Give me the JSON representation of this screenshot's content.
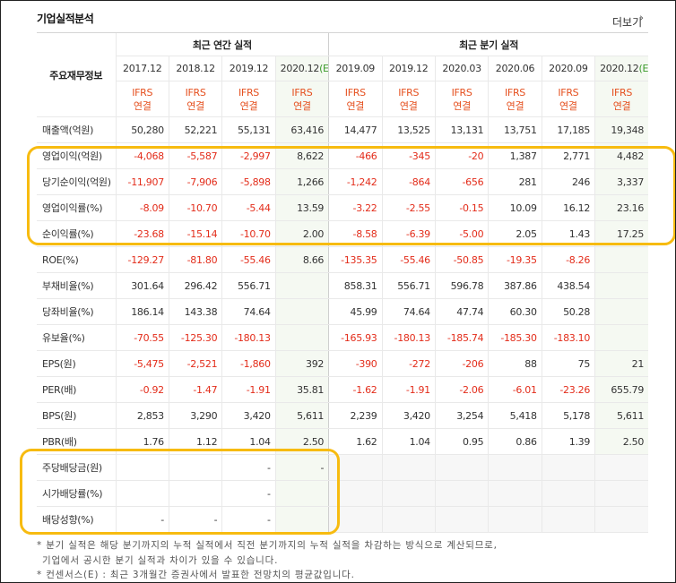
{
  "header": {
    "title": "기업실적분석",
    "more": "더보기"
  },
  "table": {
    "row_header": "주요재무정보",
    "groups": [
      {
        "label": "최근 연간 실적",
        "columns": [
          {
            "period": "2017.12",
            "standard": "IFRS",
            "basis": "연결"
          },
          {
            "period": "2018.12",
            "standard": "IFRS",
            "basis": "연결"
          },
          {
            "period": "2019.12",
            "standard": "IFRS",
            "basis": "연결"
          },
          {
            "period": "2020.12",
            "suffix": "(E)",
            "standard": "IFRS",
            "basis": "연결"
          }
        ]
      },
      {
        "label": "최근 분기 실적",
        "columns": [
          {
            "period": "2019.09",
            "standard": "IFRS",
            "basis": "연결"
          },
          {
            "period": "2019.12",
            "standard": "IFRS",
            "basis": "연결"
          },
          {
            "period": "2020.03",
            "standard": "IFRS",
            "basis": "연결"
          },
          {
            "period": "2020.06",
            "standard": "IFRS",
            "basis": "연결"
          },
          {
            "period": "2020.09",
            "standard": "IFRS",
            "basis": "연결"
          },
          {
            "period": "2020.12",
            "suffix": "(E)",
            "standard": "IFRS",
            "basis": "연결"
          }
        ]
      }
    ],
    "rows": [
      {
        "label": "매출액(억원)",
        "values": [
          "50,280",
          "52,221",
          "55,131",
          "63,416",
          "14,477",
          "13,525",
          "13,131",
          "13,751",
          "17,185",
          "19,348"
        ]
      },
      {
        "label": "영업이익(억원)",
        "values": [
          "-4,068",
          "-5,587",
          "-2,997",
          "8,622",
          "-466",
          "-345",
          "-20",
          "1,387",
          "2,771",
          "4,482"
        ]
      },
      {
        "label": "당기순이익(억원)",
        "values": [
          "-11,907",
          "-7,906",
          "-5,898",
          "1,266",
          "-1,242",
          "-864",
          "-656",
          "281",
          "246",
          "3,337"
        ]
      },
      {
        "label": "영업이익률(%)",
        "values": [
          "-8.09",
          "-10.70",
          "-5.44",
          "13.59",
          "-3.22",
          "-2.55",
          "-0.15",
          "10.09",
          "16.12",
          "23.16"
        ]
      },
      {
        "label": "순이익률(%)",
        "values": [
          "-23.68",
          "-15.14",
          "-10.70",
          "2.00",
          "-8.58",
          "-6.39",
          "-5.00",
          "2.05",
          "1.43",
          "17.25"
        ]
      },
      {
        "label": "ROE(%)",
        "values": [
          "-129.27",
          "-81.80",
          "-55.46",
          "8.66",
          "-135.35",
          "-55.46",
          "-50.85",
          "-19.35",
          "-8.26",
          null
        ]
      },
      {
        "label": "부채비율(%)",
        "values": [
          "301.64",
          "296.42",
          "556.71",
          null,
          "858.31",
          "556.71",
          "596.78",
          "387.86",
          "438.54",
          null
        ]
      },
      {
        "label": "당좌비율(%)",
        "values": [
          "186.14",
          "143.38",
          "74.64",
          null,
          "45.99",
          "74.64",
          "47.74",
          "60.30",
          "50.28",
          null
        ]
      },
      {
        "label": "유보율(%)",
        "values": [
          "-70.55",
          "-125.30",
          "-180.13",
          null,
          "-165.93",
          "-180.13",
          "-185.74",
          "-185.30",
          "-183.10",
          null
        ]
      },
      {
        "label": "EPS(원)",
        "values": [
          "-5,475",
          "-2,521",
          "-1,860",
          "392",
          "-390",
          "-272",
          "-206",
          "88",
          "75",
          "21"
        ]
      },
      {
        "label": "PER(배)",
        "values": [
          "-0.92",
          "-1.47",
          "-1.91",
          "35.81",
          "-1.62",
          "-1.91",
          "-2.06",
          "-6.01",
          "-23.26",
          "655.79"
        ]
      },
      {
        "label": "BPS(원)",
        "values": [
          "2,853",
          "3,290",
          "3,420",
          "5,611",
          "2,239",
          "3,420",
          "3,254",
          "5,418",
          "5,178",
          "5,611"
        ]
      },
      {
        "label": "PBR(배)",
        "values": [
          "1.76",
          "1.12",
          "1.04",
          "2.50",
          "1.62",
          "1.04",
          "0.95",
          "0.86",
          "1.39",
          "2.50"
        ]
      },
      {
        "label": "주당배당금(원)",
        "values": [
          null,
          null,
          "-",
          "-",
          null,
          null,
          null,
          null,
          null,
          null
        ]
      },
      {
        "label": "시가배당률(%)",
        "values": [
          null,
          null,
          "-",
          null,
          null,
          null,
          null,
          null,
          null,
          null
        ]
      },
      {
        "label": "배당성향(%)",
        "values": [
          "-",
          "-",
          "-",
          null,
          null,
          null,
          null,
          null,
          null,
          null
        ]
      }
    ]
  },
  "notes": [
    "* 분기 실적은 해당 분기까지의 누적 실적에서 직전 분기까지의 누적 실적을 차감하는 방식으로 계산되므로,",
    "기업에서 공시한 분기 실적과 차이가 있을 수 있습니다.",
    "* 컨센서스(E) : 최근 3개월간 증권사에서 발표한 전망치의 평균값입니다."
  ]
}
